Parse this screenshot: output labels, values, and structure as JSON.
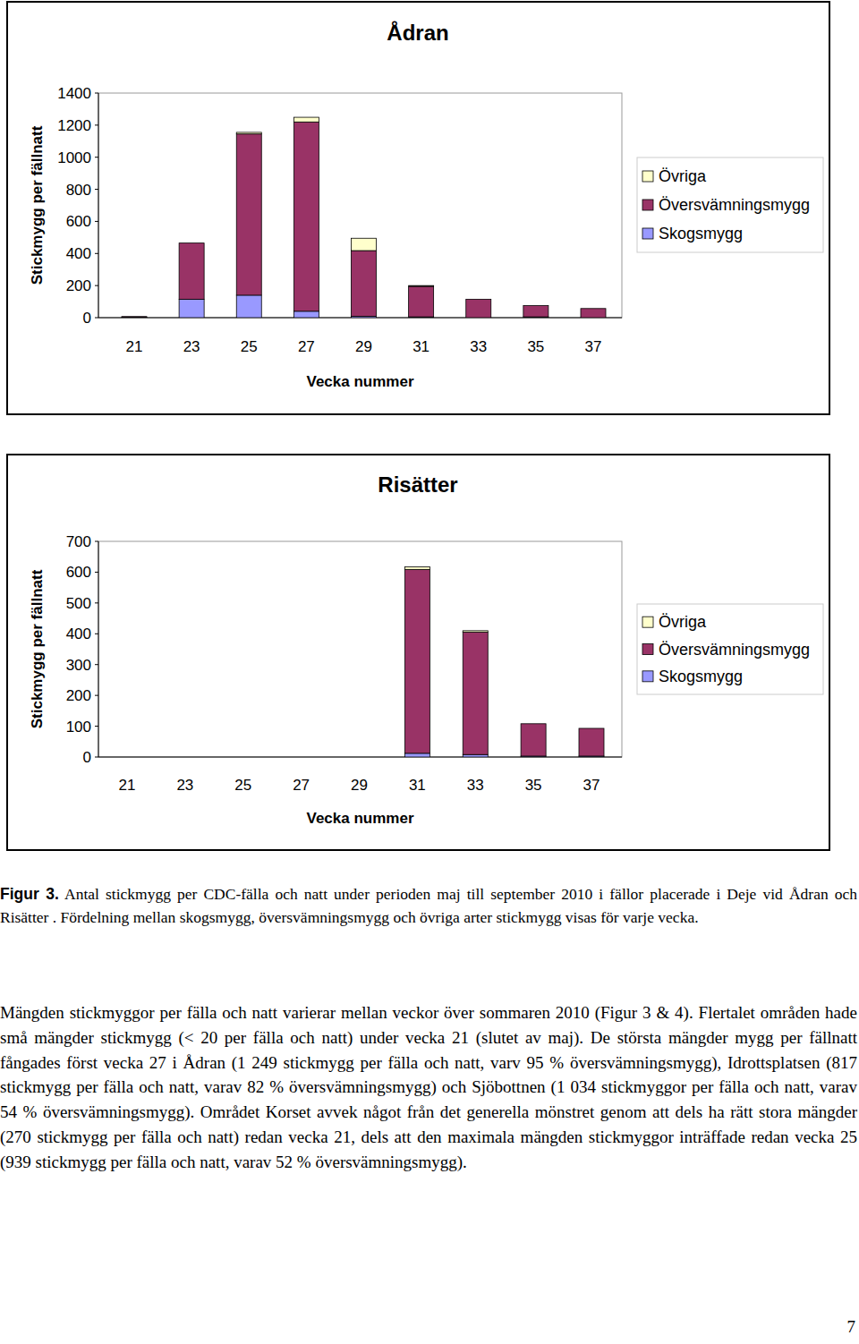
{
  "chart_data": [
    {
      "type": "bar",
      "stacked": true,
      "title": "Ådran",
      "y_label": "Stickmygg per fällnatt",
      "x_label": "Vecka nummer",
      "categories": [
        21,
        23,
        25,
        27,
        29,
        31,
        33,
        35,
        37
      ],
      "series": [
        {
          "name": "Skogsmygg",
          "color": "#9999ff",
          "values": [
            2,
            115,
            140,
            40,
            8,
            5,
            0,
            5,
            0
          ]
        },
        {
          "name": "Översvämningsmygg",
          "color": "#993366",
          "values": [
            5,
            350,
            1005,
            1180,
            410,
            190,
            115,
            70,
            57
          ]
        },
        {
          "name": "Övriga",
          "color": "#ffffcc",
          "values": [
            0,
            0,
            10,
            29,
            77,
            5,
            0,
            0,
            0
          ]
        }
      ],
      "ylim": [
        0,
        1400
      ],
      "yticks": [
        0,
        200,
        400,
        600,
        800,
        1000,
        1200,
        1400
      ],
      "legend": "right",
      "grid": false
    },
    {
      "type": "bar",
      "stacked": true,
      "title": "Risätter",
      "y_label": "Stickmygg per fällnatt",
      "x_label": "Vecka nummer",
      "categories": [
        21,
        23,
        25,
        27,
        29,
        31,
        33,
        35,
        37
      ],
      "series": [
        {
          "name": "Skogsmygg",
          "color": "#9999ff",
          "values": [
            null,
            null,
            null,
            null,
            null,
            12,
            8,
            3,
            3
          ]
        },
        {
          "name": "Översvämningsmygg",
          "color": "#993366",
          "values": [
            null,
            null,
            null,
            null,
            null,
            597,
            397,
            105,
            90
          ]
        },
        {
          "name": "Övriga",
          "color": "#ffffcc",
          "values": [
            null,
            null,
            null,
            null,
            null,
            8,
            5,
            0,
            0
          ]
        }
      ],
      "ylim": [
        0,
        700
      ],
      "yticks": [
        0,
        100,
        200,
        300,
        400,
        500,
        600,
        700
      ],
      "legend": "right",
      "grid": false
    }
  ],
  "caption": {
    "label": "Figur 3.",
    "text": " Antal stickmygg per CDC-fälla och natt under perioden maj till september 2010 i fällor placerade i Deje vid Ådran och Risätter . Fördelning mellan skogsmygg, översvämningsmygg och övriga arter stickmygg visas för varje vecka."
  },
  "paragraph": "Mängden stickmyggor per fälla och natt varierar mellan veckor över sommaren 2010 (Figur 3 & 4). Flertalet områden hade små mängder stickmygg (< 20 per fälla och natt) under vecka 21 (slutet av maj). De största mängder mygg per fällnatt fångades först vecka 27 i Ådran (1 249 stickmygg per fälla och natt, varv 95 % översvämningsmygg), Idrottsplatsen (817 stickmygg per fälla och natt, varav 82 % översvämningsmygg) och Sjöbottnen (1 034 stickmyggor per fälla och natt, varav 54 % översvämningsmygg). Området Korset avvek något från det generella mönstret genom att dels ha rätt stora mängder (270 stickmygg per fälla och natt) redan vecka 21, dels att den maximala mängden stickmyggor inträffade redan vecka 25 (939 stickmygg per fälla och natt, varav 52 % översvämningsmygg).",
  "page_number": "7"
}
